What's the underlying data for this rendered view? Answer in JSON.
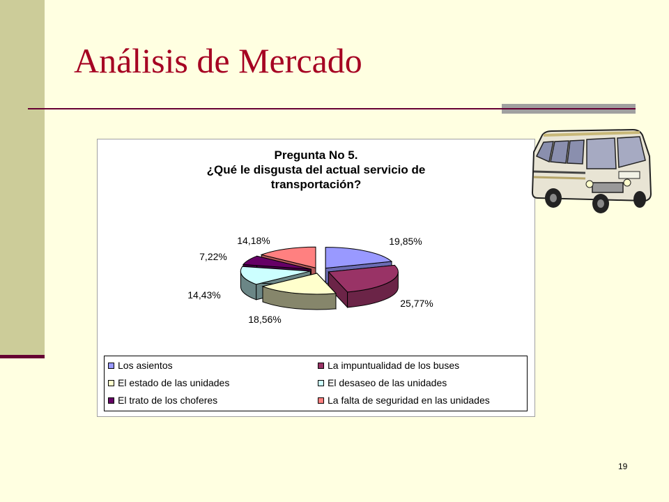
{
  "slide": {
    "title": "Análisis de Mercado",
    "page_number": "19"
  },
  "colors": {
    "background": "#ffffe1",
    "side_bar": "#cccc99",
    "title": "#a50021",
    "rule": "#660033"
  },
  "illustration": {
    "icon": "bus-icon"
  },
  "chart_data": {
    "type": "pie",
    "title_lines": [
      "Pregunta No 5.",
      "¿Qué le disgusta del actual servicio de",
      "transportación?"
    ],
    "slices": [
      {
        "label": "Los asientos",
        "value": 19.85,
        "display": "19,85%",
        "color": "#9999ff",
        "side": "#6b6bb3",
        "exploded": false
      },
      {
        "label": "La impuntualidad de los buses",
        "value": 25.77,
        "display": "25,77%",
        "color": "#993366",
        "side": "#6b2447",
        "exploded": true
      },
      {
        "label": "El estado de las unidades",
        "value": 18.56,
        "display": "18,56%",
        "color": "#ffffcc",
        "side": "#86866b",
        "exploded": true
      },
      {
        "label": "El desaseo de las unidades",
        "value": 14.43,
        "display": "14,43%",
        "color": "#ccffff",
        "side": "#6b8686",
        "exploded": true
      },
      {
        "label": "El trato de los choferes",
        "value": 7.22,
        "display": "7,22%",
        "color": "#660066",
        "side": "#470047",
        "exploded": true
      },
      {
        "label": "La falta de seguridad en las unidades",
        "value": 14.18,
        "display": "14,18%",
        "color": "#ff8080",
        "side": "#b35a5a",
        "exploded": true
      }
    ],
    "style": "3d-exploded",
    "legend_position": "bottom"
  }
}
